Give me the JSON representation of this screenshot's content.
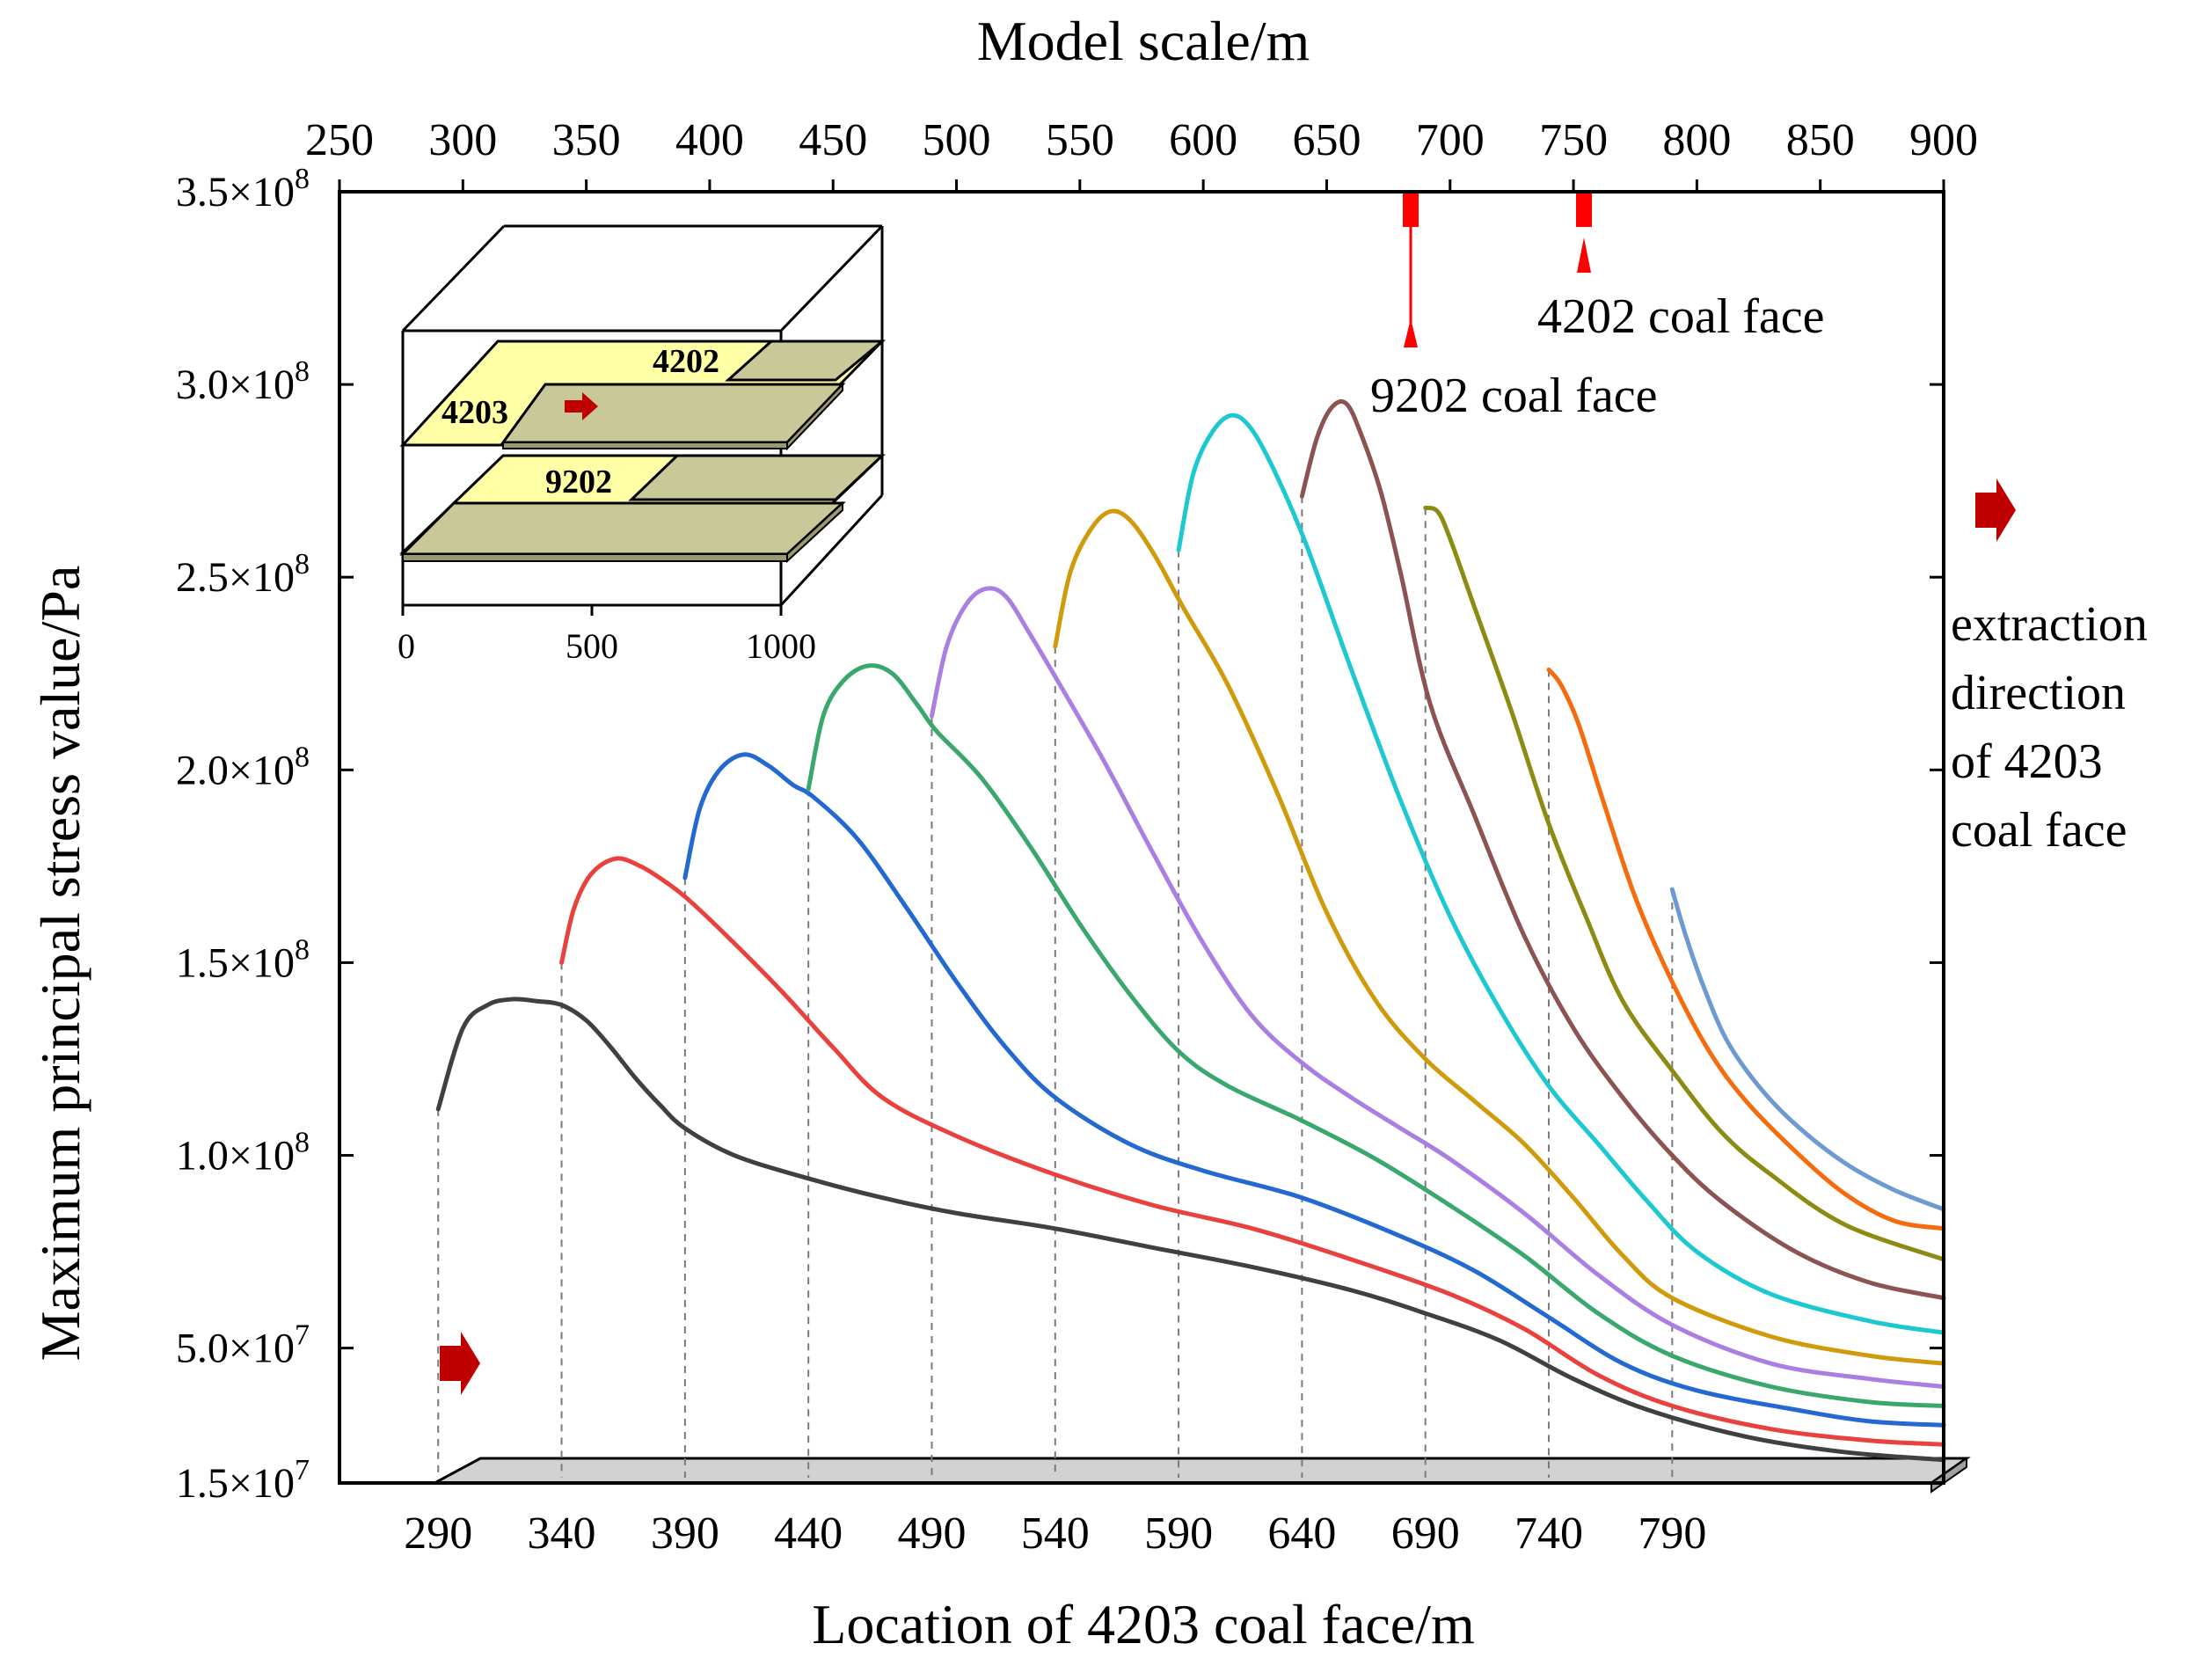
{
  "chart_data": {
    "type": "line",
    "top_axis": {
      "label": "Model scale/m",
      "range": [
        250,
        900
      ],
      "ticks": [
        250,
        300,
        350,
        400,
        450,
        500,
        550,
        600,
        650,
        700,
        750,
        800,
        850,
        900
      ]
    },
    "bottom_axis": {
      "label": "Location of 4203 coal face/m",
      "ticks": [
        "290",
        "340",
        "390",
        "440",
        "490",
        "540",
        "590",
        "640",
        "690",
        "740",
        "790"
      ]
    },
    "y_axis": {
      "label": "Maximum principal stress value/Pa",
      "range": [
        15000000.0,
        350000000.0
      ],
      "ticks": [
        {
          "value": 15000000.0,
          "mant": "1.5",
          "exp": "7"
        },
        {
          "value": 50000000.0,
          "mant": "5.0",
          "exp": "7"
        },
        {
          "value": 100000000.0,
          "mant": "1.0",
          "exp": "8"
        },
        {
          "value": 150000000.0,
          "mant": "1.5",
          "exp": "8"
        },
        {
          "value": 200000000.0,
          "mant": "2.0",
          "exp": "8"
        },
        {
          "value": 250000000.0,
          "mant": "2.5",
          "exp": "8"
        },
        {
          "value": 300000000.0,
          "mant": "3.0",
          "exp": "8"
        },
        {
          "value": 350000000.0,
          "mant": "3.5",
          "exp": "8"
        }
      ]
    },
    "series": [
      {
        "name": "290",
        "color": "#404040",
        "points": [
          [
            290,
            112000000.0
          ],
          [
            300,
            133000000.0
          ],
          [
            310,
            139000000.0
          ],
          [
            320,
            140500000.0
          ],
          [
            330,
            140000000.0
          ],
          [
            340,
            139000000.0
          ],
          [
            350,
            135000000.0
          ],
          [
            360,
            128000000.0
          ],
          [
            370,
            120000000.0
          ],
          [
            380,
            113000000.0
          ],
          [
            390,
            107000000.0
          ],
          [
            410,
            100000000.0
          ],
          [
            440,
            94000000.0
          ],
          [
            470,
            89000000.0
          ],
          [
            500,
            85000000.0
          ],
          [
            540,
            81000000.0
          ],
          [
            580,
            76000000.0
          ],
          [
            620,
            71000000.0
          ],
          [
            660,
            65000000.0
          ],
          [
            690,
            59000000.0
          ],
          [
            720,
            52000000.0
          ],
          [
            750,
            42000000.0
          ],
          [
            780,
            34000000.0
          ],
          [
            820,
            27000000.0
          ],
          [
            860,
            23000000.0
          ],
          [
            900,
            21000000.0
          ]
        ]
      },
      {
        "name": "340",
        "color": "#e8413e",
        "points": [
          [
            340,
            150000000.0
          ],
          [
            345,
            164000000.0
          ],
          [
            352,
            173000000.0
          ],
          [
            362,
            177000000.0
          ],
          [
            372,
            175000000.0
          ],
          [
            382,
            171000000.0
          ],
          [
            392,
            166000000.0
          ],
          [
            410,
            155000000.0
          ],
          [
            430,
            142000000.0
          ],
          [
            450,
            128000000.0
          ],
          [
            470,
            115000000.0
          ],
          [
            500,
            105000000.0
          ],
          [
            540,
            95000000.0
          ],
          [
            580,
            87000000.0
          ],
          [
            620,
            81000000.0
          ],
          [
            660,
            73000000.0
          ],
          [
            700,
            64000000.0
          ],
          [
            730,
            55000000.0
          ],
          [
            760,
            43000000.0
          ],
          [
            790,
            35000000.0
          ],
          [
            830,
            29000000.0
          ],
          [
            870,
            26000000.0
          ],
          [
            900,
            25000000.0
          ]
        ]
      },
      {
        "name": "390",
        "color": "#2369d1",
        "points": [
          [
            390,
            172000000.0
          ],
          [
            396,
            190000000.0
          ],
          [
            404,
            200000000.0
          ],
          [
            414,
            204000000.0
          ],
          [
            424,
            201000000.0
          ],
          [
            434,
            196000000.0
          ],
          [
            442,
            193000000.0
          ],
          [
            460,
            182000000.0
          ],
          [
            480,
            164000000.0
          ],
          [
            500,
            145000000.0
          ],
          [
            520,
            128000000.0
          ],
          [
            540,
            115000000.0
          ],
          [
            570,
            103000000.0
          ],
          [
            600,
            96000000.0
          ],
          [
            640,
            89000000.0
          ],
          [
            680,
            79000000.0
          ],
          [
            710,
            70000000.0
          ],
          [
            740,
            58000000.0
          ],
          [
            770,
            46000000.0
          ],
          [
            800,
            39000000.0
          ],
          [
            840,
            34000000.0
          ],
          [
            870,
            31000000.0
          ],
          [
            900,
            30000000.0
          ]
        ]
      },
      {
        "name": "440",
        "color": "#3aa76d",
        "points": [
          [
            440,
            195000000.0
          ],
          [
            446,
            214000000.0
          ],
          [
            454,
            223000000.0
          ],
          [
            464,
            227000000.0
          ],
          [
            474,
            225000000.0
          ],
          [
            484,
            217000000.0
          ],
          [
            492,
            210000000.0
          ],
          [
            510,
            198000000.0
          ],
          [
            530,
            180000000.0
          ],
          [
            550,
            160000000.0
          ],
          [
            570,
            142000000.0
          ],
          [
            590,
            127000000.0
          ],
          [
            610,
            118000000.0
          ],
          [
            640,
            109000000.0
          ],
          [
            670,
            99000000.0
          ],
          [
            700,
            87000000.0
          ],
          [
            730,
            74000000.0
          ],
          [
            760,
            59000000.0
          ],
          [
            790,
            48000000.0
          ],
          [
            830,
            40000000.0
          ],
          [
            870,
            36000000.0
          ],
          [
            900,
            35000000.0
          ]
        ]
      },
      {
        "name": "490",
        "color": "#ab7ee2",
        "points": [
          [
            490,
            214000000.0
          ],
          [
            496,
            232000000.0
          ],
          [
            504,
            243000000.0
          ],
          [
            512,
            247000000.0
          ],
          [
            520,
            245000000.0
          ],
          [
            530,
            235000000.0
          ],
          [
            542,
            222000000.0
          ],
          [
            560,
            202000000.0
          ],
          [
            580,
            178000000.0
          ],
          [
            600,
            155000000.0
          ],
          [
            620,
            136000000.0
          ],
          [
            640,
            124000000.0
          ],
          [
            660,
            115000000.0
          ],
          [
            680,
            107000000.0
          ],
          [
            700,
            99000000.0
          ],
          [
            730,
            85000000.0
          ],
          [
            760,
            69000000.0
          ],
          [
            790,
            56000000.0
          ],
          [
            830,
            46000000.0
          ],
          [
            870,
            42000000.0
          ],
          [
            900,
            40000000.0
          ]
        ]
      },
      {
        "name": "540",
        "color": "#cf9b0d",
        "points": [
          [
            540,
            232000000.0
          ],
          [
            546,
            251000000.0
          ],
          [
            554,
            262000000.0
          ],
          [
            562,
            267000000.0
          ],
          [
            570,
            265000000.0
          ],
          [
            580,
            256000000.0
          ],
          [
            592,
            242000000.0
          ],
          [
            610,
            222000000.0
          ],
          [
            630,
            194000000.0
          ],
          [
            650,
            163000000.0
          ],
          [
            670,
            140000000.0
          ],
          [
            690,
            125000000.0
          ],
          [
            710,
            114000000.0
          ],
          [
            730,
            103000000.0
          ],
          [
            750,
            89000000.0
          ],
          [
            770,
            74000000.0
          ],
          [
            790,
            63000000.0
          ],
          [
            830,
            53000000.0
          ],
          [
            870,
            48000000.0
          ],
          [
            900,
            46000000.0
          ]
        ]
      },
      {
        "name": "590",
        "color": "#1ec8d0",
        "points": [
          [
            590,
            257000000.0
          ],
          [
            596,
            277000000.0
          ],
          [
            604,
            288000000.0
          ],
          [
            612,
            292000000.0
          ],
          [
            620,
            288000000.0
          ],
          [
            630,
            276000000.0
          ],
          [
            642,
            258000000.0
          ],
          [
            660,
            226000000.0
          ],
          [
            680,
            192000000.0
          ],
          [
            700,
            162000000.0
          ],
          [
            720,
            138000000.0
          ],
          [
            740,
            118000000.0
          ],
          [
            760,
            103000000.0
          ],
          [
            780,
            88000000.0
          ],
          [
            800,
            75000000.0
          ],
          [
            830,
            64000000.0
          ],
          [
            870,
            57000000.0
          ],
          [
            900,
            54000000.0
          ]
        ]
      },
      {
        "name": "640",
        "color": "#8b5352",
        "points": [
          [
            640,
            271000000.0
          ],
          [
            646,
            286000000.0
          ],
          [
            652,
            294000000.0
          ],
          [
            658,
            295000000.0
          ],
          [
            664,
            287000000.0
          ],
          [
            672,
            272000000.0
          ],
          [
            680,
            251000000.0
          ],
          [
            692,
            217000000.0
          ],
          [
            710,
            188000000.0
          ],
          [
            730,
            157000000.0
          ],
          [
            750,
            133000000.0
          ],
          [
            770,
            115000000.0
          ],
          [
            790,
            100000000.0
          ],
          [
            810,
            88000000.0
          ],
          [
            840,
            75000000.0
          ],
          [
            870,
            67000000.0
          ],
          [
            900,
            63000000.0
          ]
        ]
      },
      {
        "name": "690",
        "color": "#8c8c15",
        "points": [
          [
            690,
            268000000.0
          ],
          [
            695,
            267000000.0
          ],
          [
            700,
            260000000.0
          ],
          [
            710,
            242000000.0
          ],
          [
            725,
            215000000.0
          ],
          [
            740,
            186000000.0
          ],
          [
            755,
            162000000.0
          ],
          [
            770,
            140000000.0
          ],
          [
            790,
            122000000.0
          ],
          [
            810,
            106000000.0
          ],
          [
            830,
            95000000.0
          ],
          [
            860,
            82000000.0
          ],
          [
            900,
            73000000.0
          ]
        ]
      },
      {
        "name": "740",
        "color": "#f46c0e",
        "points": [
          [
            740,
            226000000.0
          ],
          [
            745,
            222000000.0
          ],
          [
            752,
            212000000.0
          ],
          [
            762,
            192000000.0
          ],
          [
            775,
            167000000.0
          ],
          [
            790,
            145000000.0
          ],
          [
            805,
            127000000.0
          ],
          [
            820,
            114000000.0
          ],
          [
            840,
            101000000.0
          ],
          [
            860,
            90000000.0
          ],
          [
            880,
            83000000.0
          ],
          [
            900,
            81000000.0
          ]
        ]
      },
      {
        "name": "790",
        "color": "#6e9ad2",
        "points": [
          [
            790,
            169000000.0
          ],
          [
            795,
            158000000.0
          ],
          [
            802,
            145000000.0
          ],
          [
            812,
            130000000.0
          ],
          [
            825,
            118000000.0
          ],
          [
            840,
            108000000.0
          ],
          [
            860,
            98000000.0
          ],
          [
            880,
            91000000.0
          ],
          [
            900,
            86000000.0
          ]
        ]
      }
    ],
    "annotations": {
      "coal_face_9202": "9202 coal face",
      "coal_face_4202": "4202 coal face",
      "extraction_lines": [
        "extraction",
        "direction",
        "of 4203",
        "coal face"
      ]
    },
    "inset": {
      "labels": {
        "panel_4202": "4202",
        "panel_4203": "4203",
        "panel_9202": "9202"
      },
      "axis_ticks": [
        "0",
        "500",
        "1000"
      ]
    }
  }
}
